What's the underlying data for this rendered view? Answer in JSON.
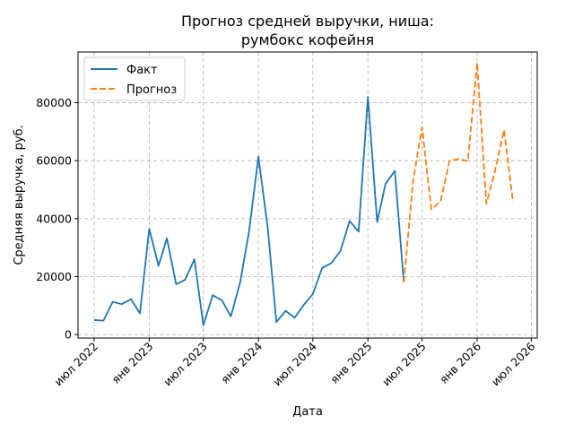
{
  "chart_data": {
    "type": "line",
    "title_lines": [
      "Прогноз средней выручки, ниша:",
      "румбокс кофейня"
    ],
    "xlabel": "Дата",
    "ylabel": "Средняя выручка, руб.",
    "grid": true,
    "legend_position": "top-left",
    "x_ticks": [
      {
        "date": "2022-07-01",
        "label": "июл 2022"
      },
      {
        "date": "2023-01-01",
        "label": "янв 2023"
      },
      {
        "date": "2023-07-01",
        "label": "июл 2023"
      },
      {
        "date": "2024-01-01",
        "label": "янв 2024"
      },
      {
        "date": "2024-07-01",
        "label": "июл 2024"
      },
      {
        "date": "2025-01-01",
        "label": "янв 2025"
      },
      {
        "date": "2025-07-01",
        "label": "июл 2025"
      },
      {
        "date": "2026-01-01",
        "label": "янв 2026"
      },
      {
        "date": "2026-07-01",
        "label": "июл 2026"
      }
    ],
    "y_ticks": [
      {
        "value": 0,
        "label": "0"
      },
      {
        "value": 20000,
        "label": "20000"
      },
      {
        "value": 40000,
        "label": "40000"
      },
      {
        "value": 60000,
        "label": "60000"
      },
      {
        "value": 80000,
        "label": "80000"
      }
    ],
    "xlim": [
      "2022-05-08",
      "2026-07-21"
    ],
    "ylim": [
      -1200,
      97500
    ],
    "series": [
      {
        "name": "Факт",
        "color": "#1f77b4",
        "dash": "solid",
        "points": [
          [
            "2022-07-01",
            5000
          ],
          [
            "2022-08-01",
            4800
          ],
          [
            "2022-09-01",
            11300
          ],
          [
            "2022-10-01",
            10500
          ],
          [
            "2022-11-01",
            12200
          ],
          [
            "2022-12-01",
            7300
          ],
          [
            "2023-01-01",
            36500
          ],
          [
            "2023-02-01",
            23700
          ],
          [
            "2023-03-01",
            33200
          ],
          [
            "2023-04-01",
            17400
          ],
          [
            "2023-05-01",
            18900
          ],
          [
            "2023-06-01",
            26000
          ],
          [
            "2023-07-01",
            3200
          ],
          [
            "2023-08-01",
            13600
          ],
          [
            "2023-09-01",
            11800
          ],
          [
            "2023-10-01",
            6300
          ],
          [
            "2023-11-01",
            18000
          ],
          [
            "2023-12-01",
            35800
          ],
          [
            "2024-01-01",
            61400
          ],
          [
            "2024-02-01",
            37000
          ],
          [
            "2024-03-01",
            4300
          ],
          [
            "2024-04-01",
            8200
          ],
          [
            "2024-05-01",
            5800
          ],
          [
            "2024-06-01",
            10300
          ],
          [
            "2024-07-01",
            14000
          ],
          [
            "2024-08-01",
            23000
          ],
          [
            "2024-09-01",
            24700
          ],
          [
            "2024-10-01",
            28800
          ],
          [
            "2024-11-01",
            39200
          ],
          [
            "2024-12-01",
            35500
          ],
          [
            "2025-01-01",
            82000
          ],
          [
            "2025-02-01",
            38800
          ],
          [
            "2025-03-01",
            52000
          ],
          [
            "2025-04-01",
            56500
          ],
          [
            "2025-05-01",
            18000
          ]
        ]
      },
      {
        "name": "Прогноз",
        "color": "#ff7f0e",
        "dash": "dashed",
        "points": [
          [
            "2025-05-01",
            18000
          ],
          [
            "2025-06-01",
            53000
          ],
          [
            "2025-07-01",
            71500
          ],
          [
            "2025-08-01",
            43200
          ],
          [
            "2025-09-01",
            46000
          ],
          [
            "2025-10-01",
            60000
          ],
          [
            "2025-11-01",
            60600
          ],
          [
            "2025-12-01",
            59800
          ],
          [
            "2026-01-01",
            93800
          ],
          [
            "2026-02-01",
            45200
          ],
          [
            "2026-03-01",
            56000
          ],
          [
            "2026-04-01",
            70600
          ],
          [
            "2026-05-01",
            45800
          ]
        ]
      }
    ]
  }
}
